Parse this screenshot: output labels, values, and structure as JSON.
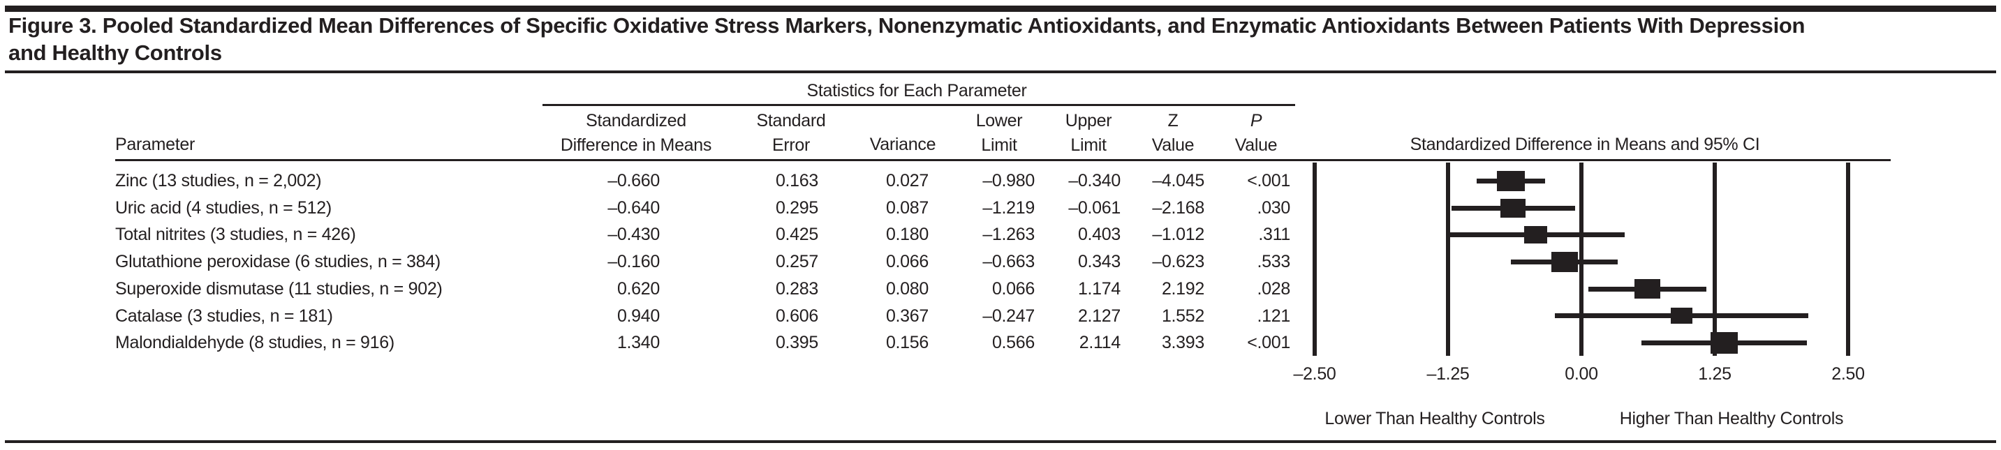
{
  "title_lines": [
    "Figure 3. Pooled Standardized Mean Differences of Specific Oxidative Stress Markers, Nonenzymatic Antioxidants, and Enzymatic Antioxidants Between Patients With Depression",
    "and Healthy Controls"
  ],
  "table": {
    "spanner": "Statistics for Each Parameter",
    "param_header": "Parameter",
    "ci_header": "Standardized Difference in Means and 95% CI",
    "col_sdm_1": "Standardized",
    "col_sdm_2": "Difference in Means",
    "col_se_1": "Standard",
    "col_se_2": "Error",
    "col_variance": "Variance",
    "col_lower_1": "Lower",
    "col_lower_2": "Limit",
    "col_upper_1": "Upper",
    "col_upper_2": "Limit",
    "col_z_1": "Z",
    "col_z_2": "Value",
    "col_p_1": "P",
    "col_p_2": "Value"
  },
  "rows": [
    {
      "param": "Zinc (13 studies, n = 2,002)",
      "sdm": "–0.660",
      "se": "0.163",
      "variance": "0.027",
      "lower": "–0.980",
      "upper": "–0.340",
      "z": "–4.045",
      "p": "<.001",
      "est": -0.66,
      "lo": -0.98,
      "hi": -0.34,
      "mw": 40,
      "mh": 29
    },
    {
      "param": "Uric acid (4 studies, n = 512)",
      "sdm": "–0.640",
      "se": "0.295",
      "variance": "0.087",
      "lower": "–1.219",
      "upper": "–0.061",
      "z": "–2.168",
      "p": ".030",
      "est": -0.64,
      "lo": -1.219,
      "hi": -0.061,
      "mw": 36,
      "mh": 27
    },
    {
      "param": "Total nitrites (3 studies, n = 426)",
      "sdm": "–0.430",
      "se": "0.425",
      "variance": "0.180",
      "lower": "–1.263",
      "upper": "0.403",
      "z": "–1.012",
      "p": ".311",
      "est": -0.43,
      "lo": -1.263,
      "hi": 0.403,
      "mw": 33,
      "mh": 25
    },
    {
      "param": "Glutathione peroxidase (6 studies, n = 384)",
      "sdm": "–0.160",
      "se": "0.257",
      "variance": "0.066",
      "lower": "–0.663",
      "upper": "0.343",
      "z": "–0.623",
      "p": ".533",
      "est": -0.16,
      "lo": -0.663,
      "hi": 0.343,
      "mw": 38,
      "mh": 29
    },
    {
      "param": "Superoxide dismutase (11 studies, n = 902)",
      "sdm": "0.620",
      "se": "0.283",
      "variance": "0.080",
      "lower": "0.066",
      "upper": "1.174",
      "z": "2.192",
      "p": ".028",
      "est": 0.62,
      "lo": 0.066,
      "hi": 1.174,
      "mw": 37,
      "mh": 28
    },
    {
      "param": "Catalase (3 studies, n = 181)",
      "sdm": "0.940",
      "se": "0.606",
      "variance": "0.367",
      "lower": "–0.247",
      "upper": "2.127",
      "z": "1.552",
      "p": ".121",
      "est": 0.94,
      "lo": -0.247,
      "hi": 2.127,
      "mw": 31,
      "mh": 23
    },
    {
      "param": "Malondialdehyde (8 studies, n = 916)",
      "sdm": "1.340",
      "se": "0.395",
      "variance": "0.156",
      "lower": "0.566",
      "upper": "2.114",
      "z": "3.393",
      "p": "<.001",
      "est": 1.34,
      "lo": 0.566,
      "hi": 2.114,
      "mw": 39,
      "mh": 31
    }
  ],
  "axis": {
    "tick_labels": [
      "–2.50",
      "–1.25",
      "0.00",
      "1.25",
      "2.50"
    ],
    "tick_values": [
      -2.5,
      -1.25,
      0,
      1.25,
      2.5
    ],
    "left_label": "Lower Than Healthy Controls",
    "right_label": "Higher Than Healthy Controls"
  },
  "chart_data": {
    "type": "scatter",
    "subtype": "forest-plot",
    "title": "Standardized Difference in Means and 95% CI",
    "categories": [
      "Zinc (13 studies, n = 2,002)",
      "Uric acid (4 studies, n = 512)",
      "Total nitrites (3 studies, n = 426)",
      "Glutathione peroxidase (6 studies, n = 384)",
      "Superoxide dismutase (11 studies, n = 902)",
      "Catalase (3 studies, n = 181)",
      "Malondialdehyde (8 studies, n = 916)"
    ],
    "series": [
      {
        "name": "Standardized difference in means",
        "values": [
          -0.66,
          -0.64,
          -0.43,
          -0.16,
          0.62,
          0.94,
          1.34
        ]
      },
      {
        "name": "95% CI lower limit",
        "values": [
          -0.98,
          -1.219,
          -1.263,
          -0.663,
          0.066,
          -0.247,
          0.566
        ]
      },
      {
        "name": "95% CI upper limit",
        "values": [
          -0.34,
          -0.061,
          0.403,
          0.343,
          1.174,
          2.127,
          2.114
        ]
      }
    ],
    "xlim": [
      -2.5,
      2.5
    ],
    "xticks": [
      -2.5,
      -1.25,
      0.0,
      1.25,
      2.5
    ],
    "grid": "vertical-reference-lines-at-ticks",
    "xlabel_left_region": "Lower Than Healthy Controls",
    "xlabel_right_region": "Higher Than Healthy Controls"
  },
  "colors": {
    "ink": "#231f20",
    "background": "#ffffff"
  }
}
